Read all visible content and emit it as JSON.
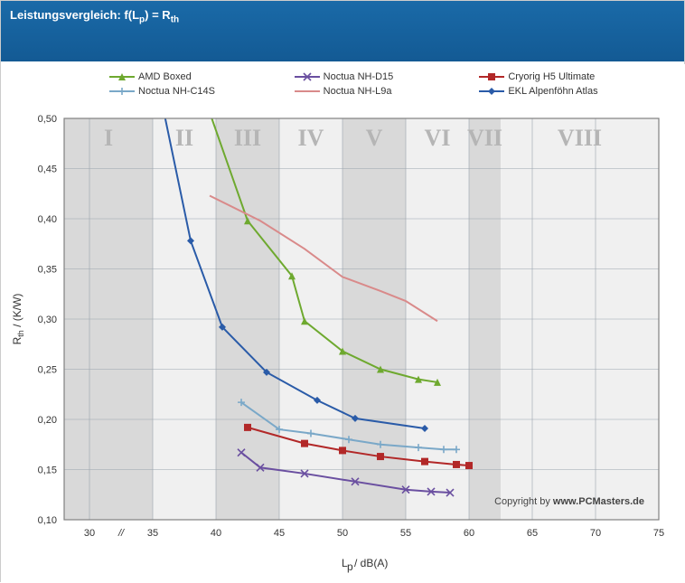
{
  "header": {
    "title_html": "Leistungsvergleich: f(L<sub>p</sub>) = R<sub>th</sub>"
  },
  "copyright": {
    "prefix": "Copyright by ",
    "bold": "www.PCMasters.de"
  },
  "chart": {
    "type": "line",
    "background": "#ffffff",
    "plot_bg": "#f0f0f0",
    "plot_border": "#808080",
    "grid_color": "#9aa3ad",
    "x": {
      "label_html": "L<sub>p</sub> / dB(A)",
      "min": 28,
      "max": 75,
      "ticks": [
        30,
        35,
        40,
        45,
        50,
        55,
        60,
        65,
        70,
        75
      ],
      "break_at": 32.5
    },
    "y": {
      "label_html": "R<sub>th</sub> / (K/W)",
      "min": 0.1,
      "max": 0.5,
      "ticks": [
        0.1,
        0.15,
        0.2,
        0.25,
        0.3,
        0.35,
        0.4,
        0.45,
        0.5
      ]
    },
    "bands": [
      {
        "label": "I",
        "from": 28,
        "to": 35,
        "shade": true
      },
      {
        "label": "II",
        "from": 35,
        "to": 40,
        "shade": false
      },
      {
        "label": "III",
        "from": 40,
        "to": 45,
        "shade": true
      },
      {
        "label": "IV",
        "from": 45,
        "to": 50,
        "shade": false
      },
      {
        "label": "V",
        "from": 50,
        "to": 55,
        "shade": true
      },
      {
        "label": "VI",
        "from": 55,
        "to": 60,
        "shade": false
      },
      {
        "label": "VII",
        "from": 60,
        "to": 62.5,
        "shade": true
      },
      {
        "label": "VIII",
        "from": 62.5,
        "to": 75,
        "shade": false
      }
    ],
    "band_shade_color": "#d9d9d9",
    "series": [
      {
        "name": "AMD Boxed",
        "color": "#6ea92f",
        "marker": "triangle",
        "line_width": 2,
        "data": [
          [
            38,
            0.56
          ],
          [
            42.5,
            0.398
          ],
          [
            46,
            0.343
          ],
          [
            47,
            0.298
          ],
          [
            50,
            0.268
          ],
          [
            53,
            0.25
          ],
          [
            56,
            0.24
          ],
          [
            57.5,
            0.237
          ]
        ]
      },
      {
        "name": "Noctua NH-D15",
        "color": "#6a4fa0",
        "marker": "x",
        "line_width": 2,
        "data": [
          [
            42,
            0.167
          ],
          [
            43.5,
            0.152
          ],
          [
            47,
            0.146
          ],
          [
            51,
            0.138
          ],
          [
            55,
            0.13
          ],
          [
            57,
            0.128
          ],
          [
            58.5,
            0.127
          ]
        ]
      },
      {
        "name": "Cryorig H5 Ultimate",
        "color": "#b22828",
        "marker": "square",
        "line_width": 2,
        "data": [
          [
            42.5,
            0.192
          ],
          [
            47,
            0.176
          ],
          [
            50,
            0.169
          ],
          [
            53,
            0.163
          ],
          [
            56.5,
            0.158
          ],
          [
            59,
            0.155
          ],
          [
            60,
            0.154
          ]
        ]
      },
      {
        "name": "Noctua NH-C14S",
        "color": "#7aa8c8",
        "marker": "plus",
        "line_width": 2,
        "data": [
          [
            42,
            0.217
          ],
          [
            45,
            0.19
          ],
          [
            47.5,
            0.186
          ],
          [
            50.5,
            0.18
          ],
          [
            53,
            0.175
          ],
          [
            56,
            0.172
          ],
          [
            58,
            0.17
          ],
          [
            59,
            0.17
          ]
        ]
      },
      {
        "name": "Noctua NH-L9a",
        "color": "#d98a8a",
        "marker": "none",
        "line_width": 2,
        "data": [
          [
            39.5,
            0.423
          ],
          [
            43.5,
            0.398
          ],
          [
            47,
            0.37
          ],
          [
            50,
            0.342
          ],
          [
            53,
            0.328
          ],
          [
            55,
            0.318
          ],
          [
            57.5,
            0.298
          ]
        ]
      },
      {
        "name": "EKL Alpenföhn Atlas",
        "color": "#2a5ba8",
        "marker": "diamond",
        "line_width": 2,
        "data": [
          [
            35,
            0.56
          ],
          [
            38,
            0.378
          ],
          [
            40.5,
            0.292
          ],
          [
            44,
            0.247
          ],
          [
            48,
            0.219
          ],
          [
            51,
            0.201
          ],
          [
            56.5,
            0.191
          ]
        ]
      }
    ]
  }
}
